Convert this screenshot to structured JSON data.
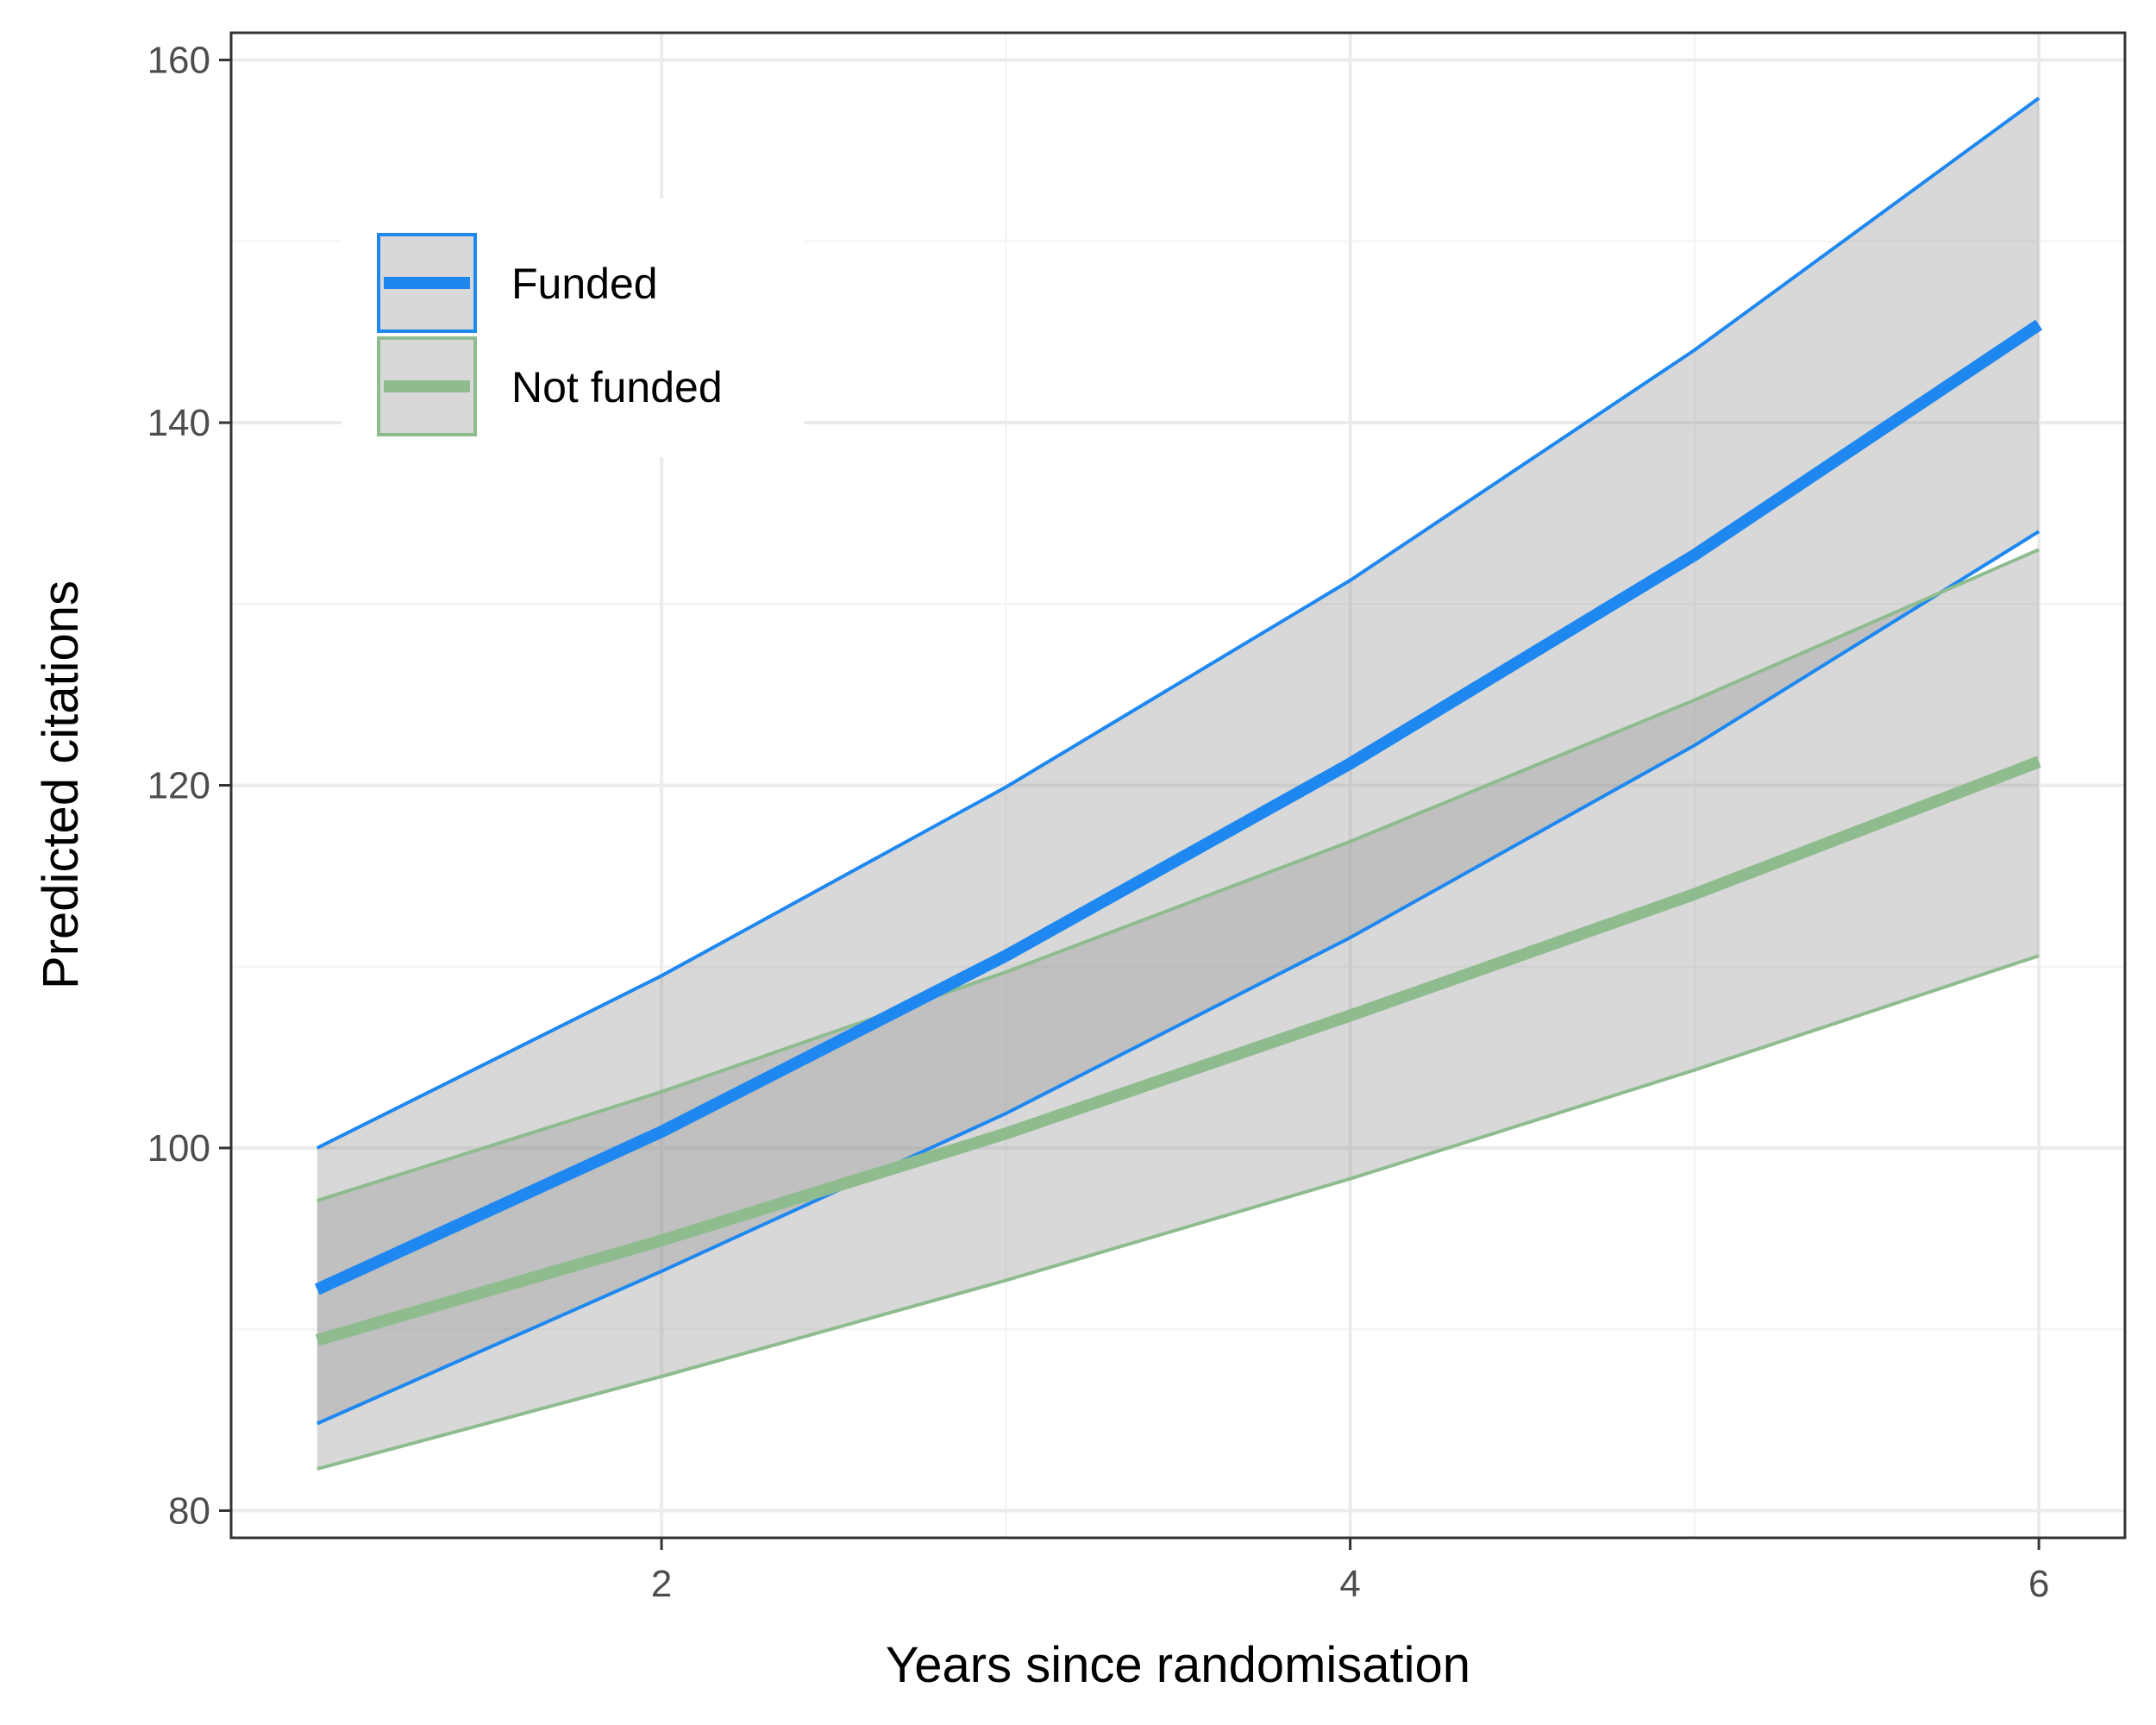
{
  "chart_data": {
    "type": "line",
    "xlabel": "Years since randomisation",
    "ylabel": "Predicted citations",
    "xlim": [
      0.75,
      6.25
    ],
    "ylim": [
      78.5,
      161.5
    ],
    "x_ticks": [
      2,
      4,
      6
    ],
    "y_ticks": [
      80,
      100,
      120,
      140,
      160
    ],
    "grid": true,
    "legend_position": "top-left",
    "x": [
      1,
      2,
      3,
      4,
      5,
      6
    ],
    "series": [
      {
        "name": "Funded",
        "color": "#1e88f0",
        "values": [
          92.2,
          100.9,
          110.6,
          121.2,
          132.7,
          145.4
        ],
        "lower": [
          84.8,
          93.2,
          101.9,
          111.6,
          122.2,
          134.0
        ],
        "upper": [
          100.0,
          109.5,
          119.9,
          131.3,
          144.0,
          157.9
        ]
      },
      {
        "name": "Not funded",
        "color": "#8fbc8f",
        "values": [
          89.4,
          94.9,
          100.8,
          107.3,
          114.0,
          121.3
        ],
        "lower": [
          82.3,
          87.4,
          92.7,
          98.3,
          104.3,
          110.6
        ],
        "upper": [
          97.1,
          103.1,
          109.7,
          116.9,
          124.7,
          133.0
        ]
      }
    ]
  }
}
